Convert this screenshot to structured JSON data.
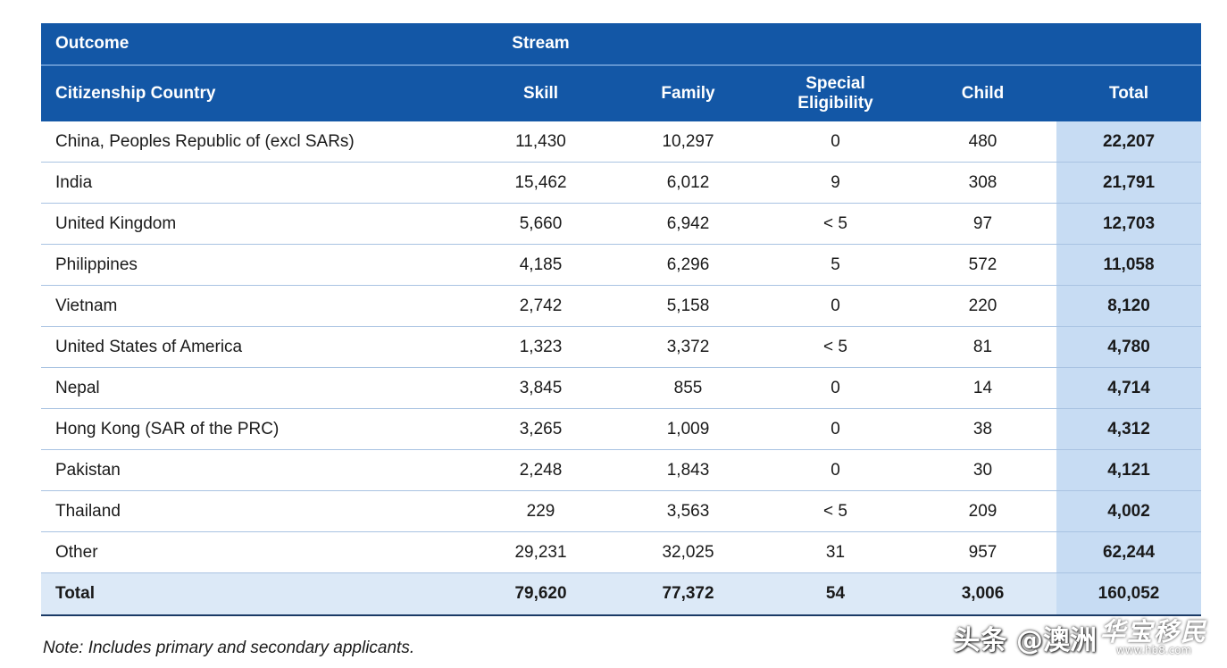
{
  "header": {
    "outcome_label": "Outcome",
    "stream_label": "Stream",
    "columns": {
      "country": "Citizenship Country",
      "skill": "Skill",
      "family": "Family",
      "special_line1": "Special",
      "special_line2": "Eligibility",
      "child": "Child",
      "total": "Total"
    }
  },
  "rows": [
    {
      "country": "China, Peoples Republic of (excl SARs)",
      "skill": "11,430",
      "family": "10,297",
      "special": "0",
      "child": "480",
      "total": "22,207"
    },
    {
      "country": "India",
      "skill": "15,462",
      "family": "6,012",
      "special": "9",
      "child": "308",
      "total": "21,791"
    },
    {
      "country": "United Kingdom",
      "skill": "5,660",
      "family": "6,942",
      "special": "< 5",
      "child": "97",
      "total": "12,703"
    },
    {
      "country": "Philippines",
      "skill": "4,185",
      "family": "6,296",
      "special": "5",
      "child": "572",
      "total": "11,058"
    },
    {
      "country": "Vietnam",
      "skill": "2,742",
      "family": "5,158",
      "special": "0",
      "child": "220",
      "total": "8,120"
    },
    {
      "country": "United States of America",
      "skill": "1,323",
      "family": "3,372",
      "special": "< 5",
      "child": "81",
      "total": "4,780"
    },
    {
      "country": "Nepal",
      "skill": "3,845",
      "family": "855",
      "special": "0",
      "child": "14",
      "total": "4,714"
    },
    {
      "country": "Hong Kong (SAR of the PRC)",
      "skill": "3,265",
      "family": "1,009",
      "special": "0",
      "child": "38",
      "total": "4,312"
    },
    {
      "country": "Pakistan",
      "skill": "2,248",
      "family": "1,843",
      "special": "0",
      "child": "30",
      "total": "4,121"
    },
    {
      "country": "Thailand",
      "skill": "229",
      "family": "3,563",
      "special": "< 5",
      "child": "209",
      "total": "4,002"
    },
    {
      "country": "Other",
      "skill": "29,231",
      "family": "32,025",
      "special": "31",
      "child": "957",
      "total": "62,244"
    }
  ],
  "total_row": {
    "country": "Total",
    "skill": "79,620",
    "family": "77,372",
    "special": "54",
    "child": "3,006",
    "total": "160,052"
  },
  "note": "Note: Includes primary and secondary applicants.",
  "watermark": {
    "text": "头条 @澳洲",
    "logo_cn": "华宝移民",
    "logo_url": "www.hb8.com"
  }
}
